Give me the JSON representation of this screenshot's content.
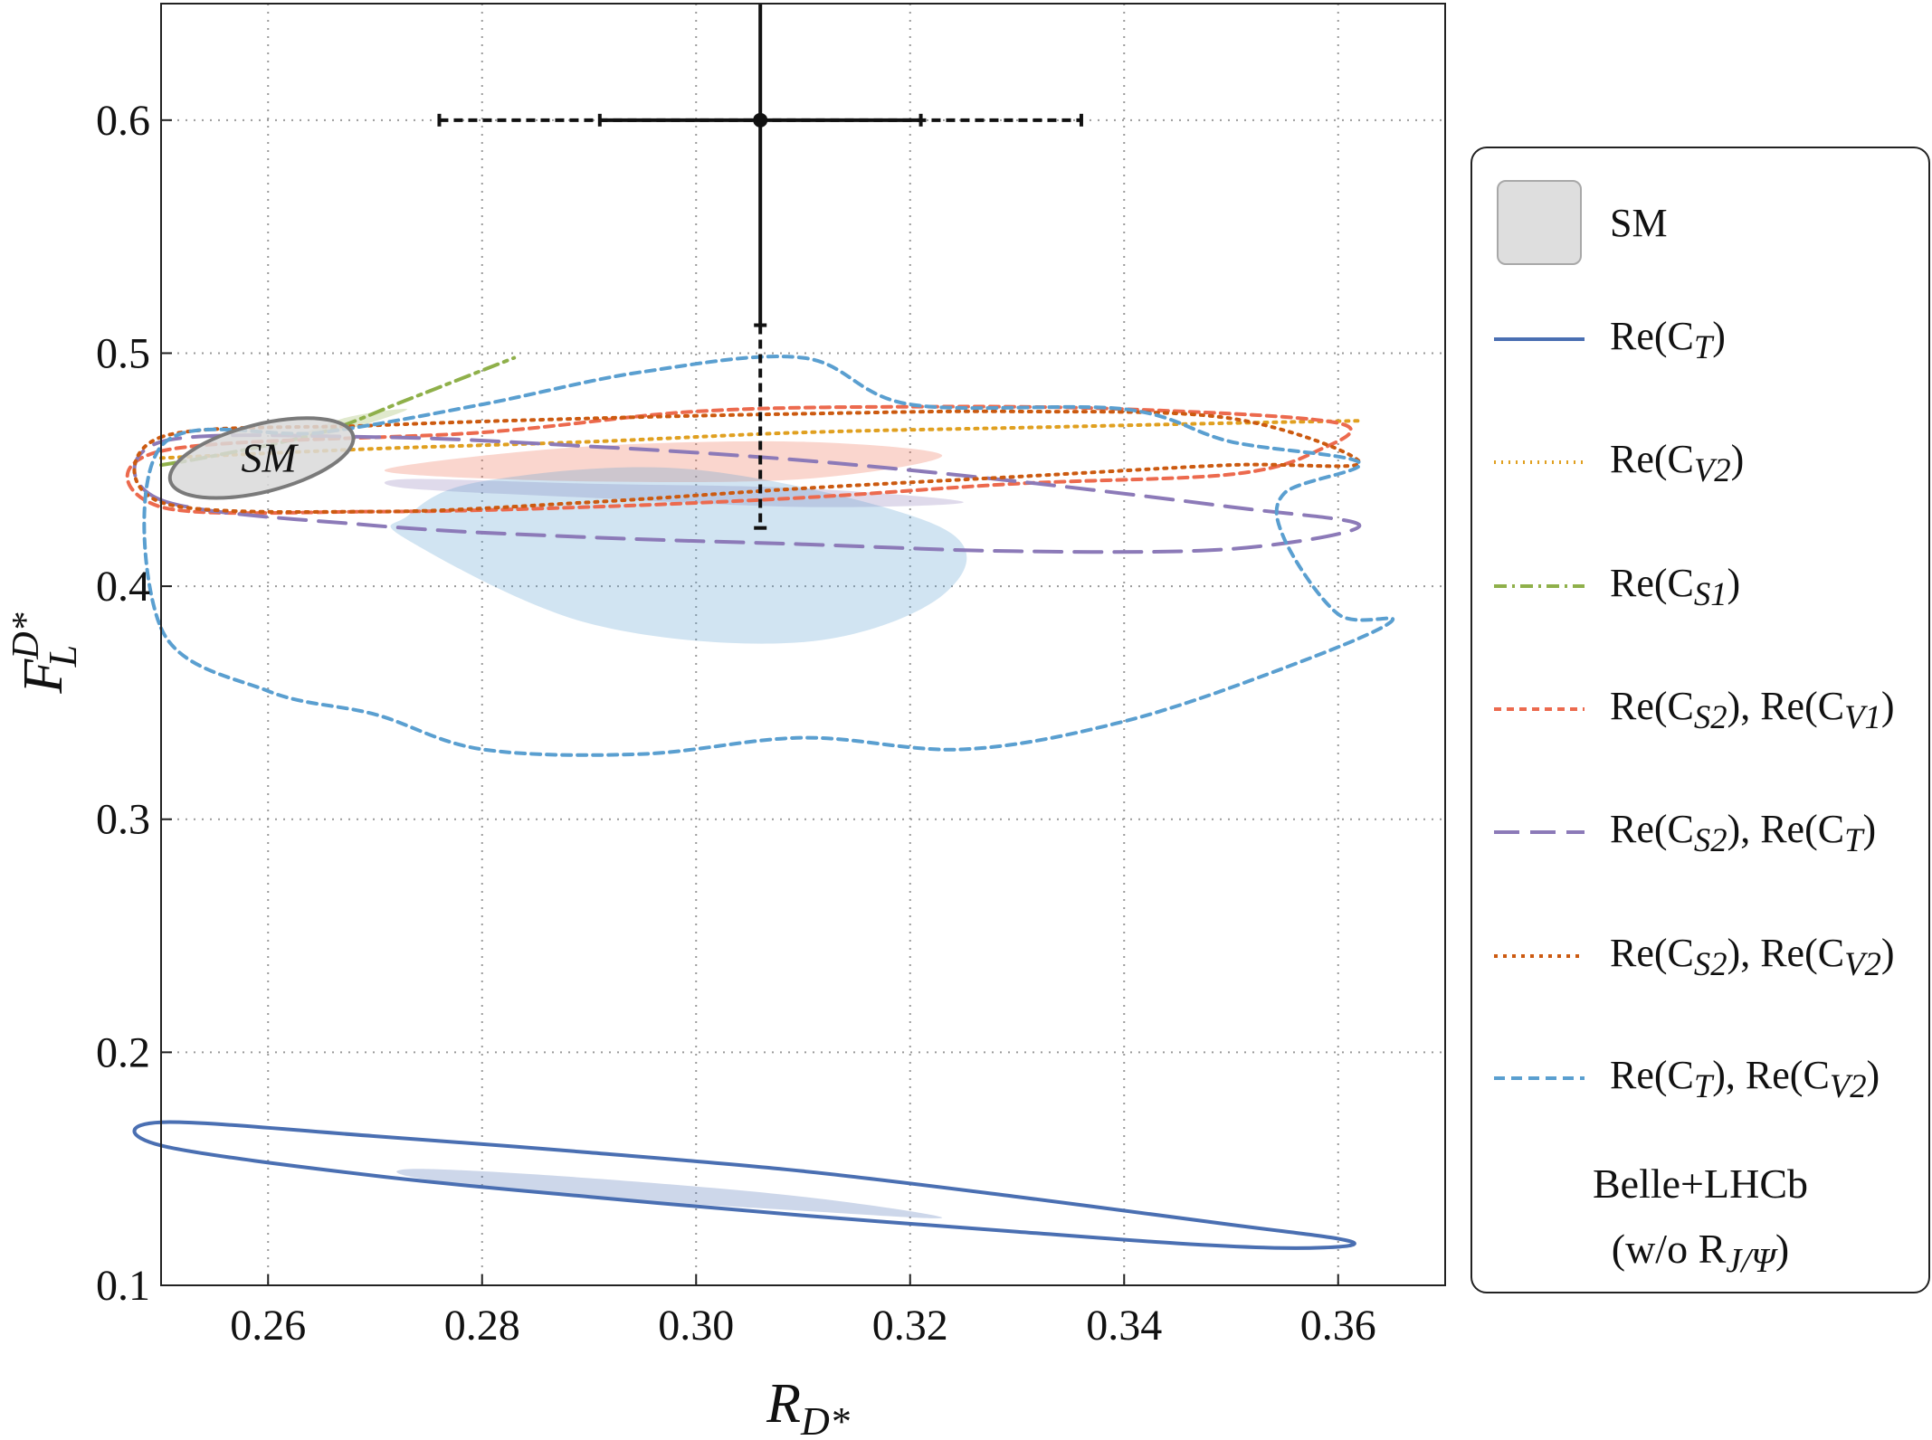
{
  "chart_data": {
    "type": "scatter",
    "title": "",
    "xlabel": "R_{D*}",
    "ylabel": "F_L^{D*}",
    "xlim": [
      0.25,
      0.37
    ],
    "ylim": [
      0.1,
      0.65
    ],
    "x_ticks": [
      "0.26",
      "0.28",
      "0.30",
      "0.32",
      "0.34",
      "0.36"
    ],
    "y_ticks": [
      "0.1",
      "0.2",
      "0.3",
      "0.4",
      "0.5",
      "0.6"
    ],
    "grid": true,
    "legend_position": "right",
    "measurement": {
      "x": 0.306,
      "y": 0.6,
      "x_err_stat": [
        0.291,
        0.321
      ],
      "x_err_total": [
        0.276,
        0.336
      ],
      "y_err_stat_upper": 0.65,
      "y_err_stat_lower": 0.512,
      "y_err_total_lower": 0.425
    },
    "sm_point": {
      "label": "SM",
      "x": 0.2594,
      "y": 0.455,
      "rx": 0.0088,
      "ry": 0.0145,
      "angle_deg": -14
    },
    "series": [
      {
        "name": "SM",
        "style": "filled",
        "color": "#d9d9d9"
      },
      {
        "name": "Re(C_T)",
        "style": "solid",
        "color": "#4a6fb2",
        "contour": [
          [
            0.25,
            0.17
          ],
          [
            0.27,
            0.164
          ],
          [
            0.29,
            0.157
          ],
          [
            0.31,
            0.149
          ],
          [
            0.33,
            0.138
          ],
          [
            0.35,
            0.126
          ],
          [
            0.36,
            0.12
          ],
          [
            0.361,
            0.117
          ],
          [
            0.355,
            0.116
          ],
          [
            0.345,
            0.118
          ],
          [
            0.33,
            0.123
          ],
          [
            0.31,
            0.13
          ],
          [
            0.29,
            0.138
          ],
          [
            0.27,
            0.147
          ],
          [
            0.25,
            0.16
          ]
        ],
        "region": [
          [
            0.274,
            0.15
          ],
          [
            0.29,
            0.146
          ],
          [
            0.31,
            0.138
          ],
          [
            0.323,
            0.129
          ],
          [
            0.31,
            0.132
          ],
          [
            0.29,
            0.138
          ],
          [
            0.274,
            0.146
          ]
        ]
      },
      {
        "name": "Re(C_V2)",
        "style": "dotted",
        "color": "#e0a020",
        "contour": [
          [
            0.25,
            0.455
          ],
          [
            0.27,
            0.459
          ],
          [
            0.29,
            0.462
          ],
          [
            0.31,
            0.466
          ],
          [
            0.33,
            0.468
          ],
          [
            0.35,
            0.47
          ],
          [
            0.362,
            0.471
          ]
        ]
      },
      {
        "name": "Re(C_S1)",
        "style": "dashdot",
        "color": "#8fb04a",
        "contour": [
          [
            0.25,
            0.452
          ],
          [
            0.255,
            0.456
          ],
          [
            0.265,
            0.466
          ],
          [
            0.273,
            0.48
          ],
          [
            0.283,
            0.498
          ]
        ],
        "region": [
          [
            0.262,
            0.462
          ],
          [
            0.268,
            0.468
          ],
          [
            0.273,
            0.476
          ],
          [
            0.267,
            0.472
          ]
        ]
      },
      {
        "name": "Re(C_S2), Re(C_V1)",
        "style": "dashed",
        "color": "#ec6a4e",
        "contour": [
          [
            0.25,
            0.458
          ],
          [
            0.28,
            0.466
          ],
          [
            0.3,
            0.475
          ],
          [
            0.32,
            0.477
          ],
          [
            0.34,
            0.476
          ],
          [
            0.36,
            0.47
          ],
          [
            0.358,
            0.458
          ],
          [
            0.35,
            0.448
          ],
          [
            0.33,
            0.444
          ],
          [
            0.31,
            0.438
          ],
          [
            0.29,
            0.434
          ],
          [
            0.27,
            0.432
          ],
          [
            0.25,
            0.434
          ]
        ],
        "region": [
          [
            0.273,
            0.452
          ],
          [
            0.29,
            0.46
          ],
          [
            0.31,
            0.462
          ],
          [
            0.323,
            0.456
          ],
          [
            0.31,
            0.446
          ],
          [
            0.29,
            0.445
          ],
          [
            0.273,
            0.448
          ]
        ]
      },
      {
        "name": "Re(C_S2), Re(C_T)",
        "style": "longdash",
        "color": "#8c7ab8",
        "contour": [
          [
            0.25,
            0.437
          ],
          [
            0.27,
            0.426
          ],
          [
            0.29,
            0.421
          ],
          [
            0.31,
            0.418
          ],
          [
            0.33,
            0.415
          ],
          [
            0.35,
            0.416
          ],
          [
            0.362,
            0.426
          ],
          [
            0.35,
            0.434
          ],
          [
            0.33,
            0.445
          ],
          [
            0.31,
            0.454
          ],
          [
            0.29,
            0.46
          ],
          [
            0.27,
            0.464
          ],
          [
            0.25,
            0.462
          ]
        ],
        "region": [
          [
            0.273,
            0.442
          ],
          [
            0.29,
            0.438
          ],
          [
            0.31,
            0.434
          ],
          [
            0.325,
            0.436
          ],
          [
            0.31,
            0.442
          ],
          [
            0.29,
            0.444
          ],
          [
            0.273,
            0.446
          ]
        ]
      },
      {
        "name": "Re(C_S2), Re(C_V2)",
        "style": "dotted",
        "color": "#cc5a10",
        "contour": [
          [
            0.25,
            0.464
          ],
          [
            0.27,
            0.469
          ],
          [
            0.29,
            0.472
          ],
          [
            0.31,
            0.474
          ],
          [
            0.33,
            0.475
          ],
          [
            0.35,
            0.472
          ],
          [
            0.362,
            0.453
          ],
          [
            0.35,
            0.452
          ],
          [
            0.33,
            0.447
          ],
          [
            0.31,
            0.442
          ],
          [
            0.29,
            0.436
          ],
          [
            0.27,
            0.432
          ],
          [
            0.25,
            0.436
          ]
        ]
      },
      {
        "name": "Re(C_T), Re(C_V2)",
        "style": "dashed",
        "color": "#5a9fd0",
        "contour": [
          [
            0.25,
            0.382
          ],
          [
            0.26,
            0.355
          ],
          [
            0.27,
            0.345
          ],
          [
            0.28,
            0.33
          ],
          [
            0.295,
            0.328
          ],
          [
            0.31,
            0.335
          ],
          [
            0.325,
            0.33
          ],
          [
            0.34,
            0.342
          ],
          [
            0.355,
            0.365
          ],
          [
            0.365,
            0.385
          ],
          [
            0.36,
            0.388
          ],
          [
            0.355,
            0.42
          ],
          [
            0.355,
            0.44
          ],
          [
            0.362,
            0.453
          ],
          [
            0.35,
            0.462
          ],
          [
            0.34,
            0.476
          ],
          [
            0.32,
            0.478
          ],
          [
            0.31,
            0.498
          ],
          [
            0.295,
            0.492
          ],
          [
            0.28,
            0.478
          ],
          [
            0.265,
            0.466
          ],
          [
            0.25,
            0.46
          ]
        ],
        "region": [
          [
            0.273,
            0.42
          ],
          [
            0.29,
            0.384
          ],
          [
            0.31,
            0.376
          ],
          [
            0.323,
            0.396
          ],
          [
            0.323,
            0.425
          ],
          [
            0.3,
            0.45
          ],
          [
            0.28,
            0.445
          ],
          [
            0.273,
            0.43
          ]
        ]
      }
    ],
    "annotations": [
      "Belle+LHCb",
      "(w/o R_{J/Ψ})"
    ]
  },
  "legend": {
    "items": [
      {
        "key": "sm",
        "base": "SM"
      },
      {
        "key": "ct",
        "base": "Re(C",
        "sub": "T",
        "tail": ")"
      },
      {
        "key": "cv2",
        "base": "Re(C",
        "sub": "V2",
        "tail": ")"
      },
      {
        "key": "cs1",
        "base": "Re(C",
        "sub": "S1",
        "tail": ")"
      },
      {
        "key": "cs2cv1",
        "base": "Re(C",
        "sub": "S2",
        "tail": "), Re(C",
        "sub2": "V1",
        "tail2": ")"
      },
      {
        "key": "cs2ct",
        "base": "Re(C",
        "sub": "S2",
        "tail": "), Re(C",
        "sub2": "T",
        "tail2": ")"
      },
      {
        "key": "cs2cv2",
        "base": "Re(C",
        "sub": "S2",
        "tail": "), Re(C",
        "sub2": "V2",
        "tail2": ")"
      },
      {
        "key": "ctcv2",
        "base": "Re(C",
        "sub": "T",
        "tail": "), Re(C",
        "sub2": "V2",
        "tail2": ")"
      }
    ],
    "note_line1": "Belle+LHCb",
    "note_line2": "(w/o R",
    "note_line2_sub": "J/Ψ",
    "note_line2_tail": ")"
  },
  "axes": {
    "x_label_main": "R",
    "x_label_sub": "D*",
    "y_label_main": "F",
    "y_label_sub": "L",
    "y_label_sup": "D*",
    "sm_label": "SM"
  }
}
